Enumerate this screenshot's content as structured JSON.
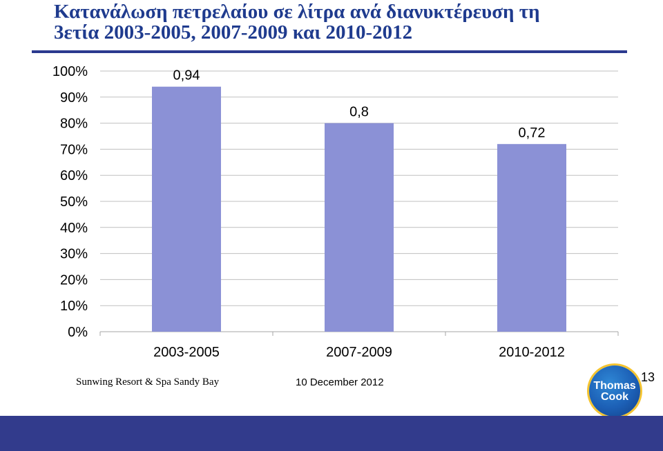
{
  "title": {
    "line1": "Κατανάλωση πετρελαίου σε λίτρα ανά διανυκτέρευση τη",
    "line2": "3ετία 2003-2005, 2007-2009 και 2010-2012"
  },
  "chart_data": {
    "type": "bar",
    "categories": [
      "2003-2005",
      "2007-2009",
      "2010-2012"
    ],
    "values": [
      0.94,
      0.8,
      0.72
    ],
    "data_labels": [
      "0,94",
      "0,8",
      "0,72"
    ],
    "y_ticks": [
      "0%",
      "10%",
      "20%",
      "30%",
      "40%",
      "50%",
      "60%",
      "70%",
      "80%",
      "90%",
      "100%"
    ],
    "ylim": [
      0,
      1
    ],
    "grid": true,
    "bar_color": "#8b91d6",
    "title": "",
    "xlabel": "",
    "ylabel": ""
  },
  "footer": {
    "left_text": "Sunwing Resort & Spa Sandy Bay",
    "date": "10 December 2012",
    "page_number": "13"
  },
  "logo": {
    "line1": "Thomas",
    "line2": "Cook"
  },
  "colors": {
    "title": "#1f3b8e",
    "rule": "#2b3a8f",
    "bottom_band": "#323b8c"
  }
}
